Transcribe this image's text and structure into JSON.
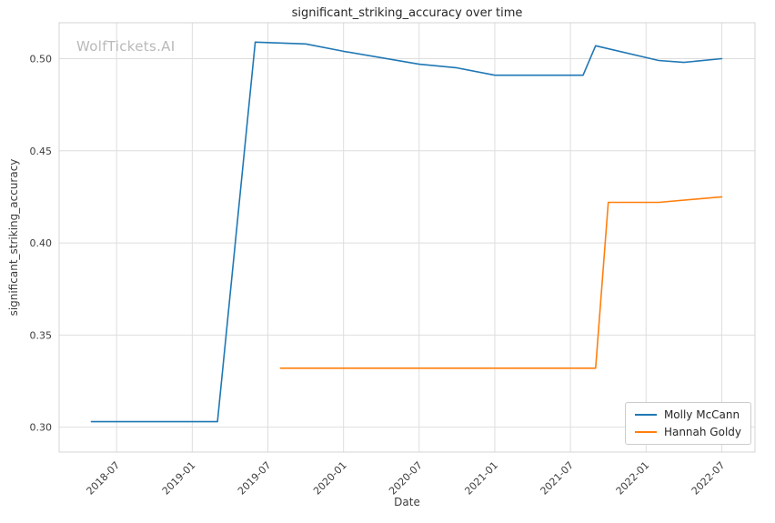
{
  "chart_data": {
    "type": "line",
    "title": "significant_striking_accuracy over time",
    "xlabel": "Date",
    "ylabel": "significant_striking_accuracy",
    "watermark": "WolfTickets.AI",
    "grid": true,
    "legend_position": "lower right",
    "xlim": [
      2018.12,
      2022.72
    ],
    "ylim": [
      0.2865,
      0.5195
    ],
    "xticks": [
      "2018-07",
      "2019-01",
      "2019-07",
      "2020-01",
      "2020-07",
      "2021-01",
      "2021-07",
      "2022-01",
      "2022-07"
    ],
    "yticks": [
      "0.30",
      "0.35",
      "0.40",
      "0.45",
      "0.50"
    ],
    "colors": {
      "grid": "#dedede",
      "spine": "#d4d4d4",
      "tick_text": "#3d3d3d"
    },
    "series": [
      {
        "name": "Molly McCann",
        "color": "#1f77b4",
        "points": [
          {
            "date": "2018-05",
            "value": 0.303
          },
          {
            "date": "2019-03",
            "value": 0.303
          },
          {
            "date": "2019-06",
            "value": 0.509
          },
          {
            "date": "2019-10",
            "value": 0.508
          },
          {
            "date": "2020-01",
            "value": 0.504
          },
          {
            "date": "2020-07",
            "value": 0.497
          },
          {
            "date": "2020-10",
            "value": 0.495
          },
          {
            "date": "2021-01",
            "value": 0.491
          },
          {
            "date": "2021-08",
            "value": 0.491
          },
          {
            "date": "2021-09",
            "value": 0.507
          },
          {
            "date": "2022-02",
            "value": 0.499
          },
          {
            "date": "2022-04",
            "value": 0.498
          },
          {
            "date": "2022-07",
            "value": 0.5
          }
        ]
      },
      {
        "name": "Hannah Goldy",
        "color": "#ff7f0e",
        "points": [
          {
            "date": "2019-08",
            "value": 0.332
          },
          {
            "date": "2021-09",
            "value": 0.332
          },
          {
            "date": "2021-10",
            "value": 0.422
          },
          {
            "date": "2022-02",
            "value": 0.422
          },
          {
            "date": "2022-07",
            "value": 0.425
          }
        ]
      }
    ]
  }
}
